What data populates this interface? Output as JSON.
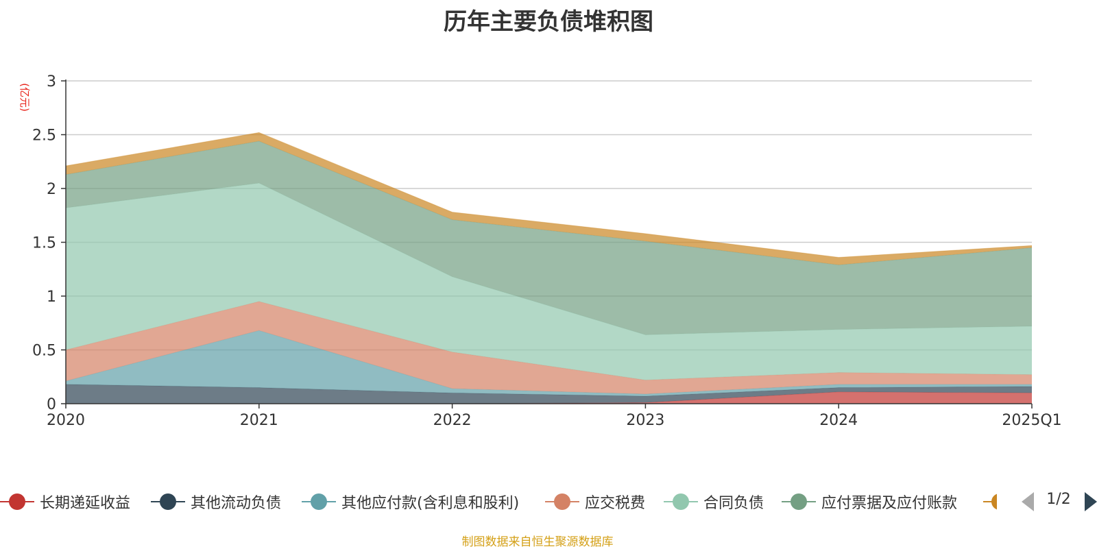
{
  "chart_data": {
    "type": "area",
    "stacked": true,
    "title": "历年主要负债堆积图",
    "ylabel": "(亿元)",
    "xlabel": "",
    "categories": [
      "2020",
      "2021",
      "2022",
      "2023",
      "2024",
      "2025Q1"
    ],
    "ylim": [
      0,
      3
    ],
    "yticks": [
      "0",
      "0.5",
      "1",
      "1.5",
      "2",
      "2.5",
      "3"
    ],
    "grid": true,
    "series": [
      {
        "name": "长期递延收益",
        "color": "#c23531",
        "values": [
          0,
          0,
          0,
          0.01,
          0.11,
          0.1
        ]
      },
      {
        "name": "其他流动负债",
        "color": "#2f4554",
        "values": [
          0.18,
          0.15,
          0.1,
          0.06,
          0.04,
          0.06
        ]
      },
      {
        "name": "其他应付款(含利息和股利)",
        "color": "#61a0a8",
        "values": [
          0.03,
          0.53,
          0.04,
          0.02,
          0.03,
          0.02
        ]
      },
      {
        "name": "应交税费",
        "color": "#d48265",
        "values": [
          0.29,
          0.27,
          0.34,
          0.13,
          0.11,
          0.09
        ]
      },
      {
        "name": "合同负债",
        "color": "#91c7ae",
        "values": [
          1.32,
          1.1,
          0.7,
          0.42,
          0.4,
          0.45
        ]
      },
      {
        "name": "应付票据及应付账款",
        "color": "#749f83",
        "values": [
          0.31,
          0.39,
          0.53,
          0.87,
          0.6,
          0.73
        ]
      },
      {
        "name": "",
        "color": "#ca8622",
        "values": [
          0.08,
          0.08,
          0.07,
          0.07,
          0.07,
          0.02
        ]
      }
    ],
    "legend": {
      "position": "bottom",
      "page": "1/2"
    }
  },
  "footer": {
    "source": "制图数据来自恒生聚源数据库"
  }
}
